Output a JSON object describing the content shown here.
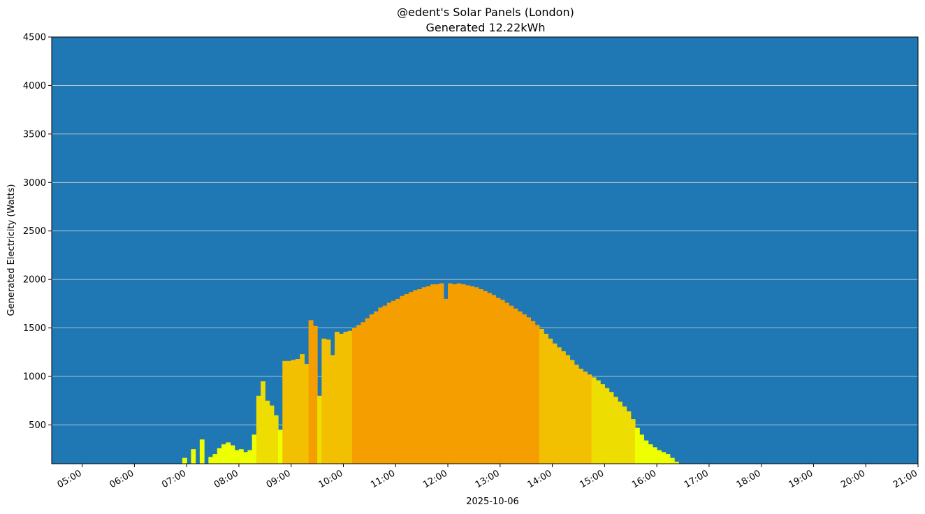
{
  "chart_data": {
    "type": "bar",
    "title": "@edent's Solar Panels (London)",
    "subtitle": "Generated 12.22kWh",
    "xlabel": "2025-10-06",
    "ylabel": "Generated Electricity (Watts)",
    "ylim": [
      100,
      4500
    ],
    "xlim": [
      "04:25",
      "21:00"
    ],
    "y_ticks": [
      500,
      1000,
      1500,
      2000,
      2500,
      3000,
      3500,
      4000,
      4500
    ],
    "x_ticks": [
      "05:00",
      "06:00",
      "07:00",
      "08:00",
      "09:00",
      "10:00",
      "11:00",
      "12:00",
      "13:00",
      "14:00",
      "15:00",
      "16:00",
      "17:00",
      "18:00",
      "19:00",
      "20:00",
      "21:00"
    ],
    "grid": "horizontal",
    "colors": {
      "background": "#1f77b4",
      "grid": "#d9d9d9",
      "low": "#eeff00",
      "mid_low": "#eedd00",
      "mid": "#f2c000",
      "high": "#f5a200",
      "peak": "#f59e00"
    },
    "series": [
      {
        "points": [
          [
            "06:55",
            160
          ],
          [
            "07:00",
            0
          ],
          [
            "07:05",
            250
          ],
          [
            "07:10",
            0
          ],
          [
            "07:15",
            350
          ],
          [
            "07:20",
            0
          ],
          [
            "07:25",
            170
          ],
          [
            "07:30",
            200
          ],
          [
            "07:35",
            260
          ],
          [
            "07:40",
            300
          ],
          [
            "07:45",
            320
          ],
          [
            "07:50",
            290
          ],
          [
            "07:55",
            240
          ],
          [
            "08:00",
            250
          ],
          [
            "08:05",
            220
          ],
          [
            "08:10",
            240
          ],
          [
            "08:15",
            400
          ],
          [
            "08:20",
            800
          ],
          [
            "08:25",
            950
          ],
          [
            "08:30",
            750
          ],
          [
            "08:35",
            700
          ],
          [
            "08:40",
            600
          ],
          [
            "08:45",
            450
          ],
          [
            "08:50",
            1160
          ],
          [
            "08:55",
            1160
          ],
          [
            "09:00",
            1170
          ],
          [
            "09:05",
            1180
          ],
          [
            "09:10",
            1230
          ],
          [
            "09:15",
            1130
          ],
          [
            "09:20",
            1580
          ],
          [
            "09:25",
            1520
          ],
          [
            "09:30",
            800
          ],
          [
            "09:35",
            1390
          ],
          [
            "09:40",
            1380
          ],
          [
            "09:45",
            1220
          ],
          [
            "09:50",
            1460
          ],
          [
            "09:55",
            1440
          ],
          [
            "10:00",
            1460
          ],
          [
            "10:05",
            1470
          ],
          [
            "10:10",
            1500
          ],
          [
            "10:15",
            1530
          ],
          [
            "10:20",
            1560
          ],
          [
            "10:25",
            1600
          ],
          [
            "10:30",
            1640
          ],
          [
            "10:35",
            1670
          ],
          [
            "10:40",
            1710
          ],
          [
            "10:45",
            1730
          ],
          [
            "10:50",
            1760
          ],
          [
            "10:55",
            1780
          ],
          [
            "11:00",
            1800
          ],
          [
            "11:05",
            1830
          ],
          [
            "11:10",
            1850
          ],
          [
            "11:15",
            1870
          ],
          [
            "11:20",
            1890
          ],
          [
            "11:25",
            1900
          ],
          [
            "11:30",
            1920
          ],
          [
            "11:35",
            1930
          ],
          [
            "11:40",
            1950
          ],
          [
            "11:45",
            1950
          ],
          [
            "11:50",
            1960
          ],
          [
            "11:55",
            1800
          ],
          [
            "12:00",
            1960
          ],
          [
            "12:05",
            1950
          ],
          [
            "12:10",
            1960
          ],
          [
            "12:15",
            1950
          ],
          [
            "12:20",
            1940
          ],
          [
            "12:25",
            1930
          ],
          [
            "12:30",
            1920
          ],
          [
            "12:35",
            1900
          ],
          [
            "12:40",
            1880
          ],
          [
            "12:45",
            1860
          ],
          [
            "12:50",
            1840
          ],
          [
            "12:55",
            1810
          ],
          [
            "13:00",
            1790
          ],
          [
            "13:05",
            1760
          ],
          [
            "13:10",
            1730
          ],
          [
            "13:15",
            1700
          ],
          [
            "13:20",
            1670
          ],
          [
            "13:25",
            1640
          ],
          [
            "13:30",
            1610
          ],
          [
            "13:35",
            1570
          ],
          [
            "13:40",
            1530
          ],
          [
            "13:45",
            1490
          ],
          [
            "13:50",
            1440
          ],
          [
            "13:55",
            1390
          ],
          [
            "14:00",
            1340
          ],
          [
            "14:05",
            1300
          ],
          [
            "14:10",
            1260
          ],
          [
            "14:15",
            1220
          ],
          [
            "14:20",
            1170
          ],
          [
            "14:25",
            1120
          ],
          [
            "14:30",
            1080
          ],
          [
            "14:35",
            1050
          ],
          [
            "14:40",
            1020
          ],
          [
            "14:45",
            990
          ],
          [
            "14:50",
            960
          ],
          [
            "14:55",
            920
          ],
          [
            "15:00",
            880
          ],
          [
            "15:05",
            840
          ],
          [
            "15:10",
            790
          ],
          [
            "15:15",
            740
          ],
          [
            "15:20",
            690
          ],
          [
            "15:25",
            640
          ],
          [
            "15:30",
            560
          ],
          [
            "15:35",
            470
          ],
          [
            "15:40",
            400
          ],
          [
            "15:45",
            340
          ],
          [
            "15:50",
            300
          ],
          [
            "15:55",
            270
          ],
          [
            "16:00",
            240
          ],
          [
            "16:05",
            220
          ],
          [
            "16:10",
            200
          ],
          [
            "16:15",
            160
          ],
          [
            "16:20",
            120
          ]
        ]
      }
    ]
  }
}
